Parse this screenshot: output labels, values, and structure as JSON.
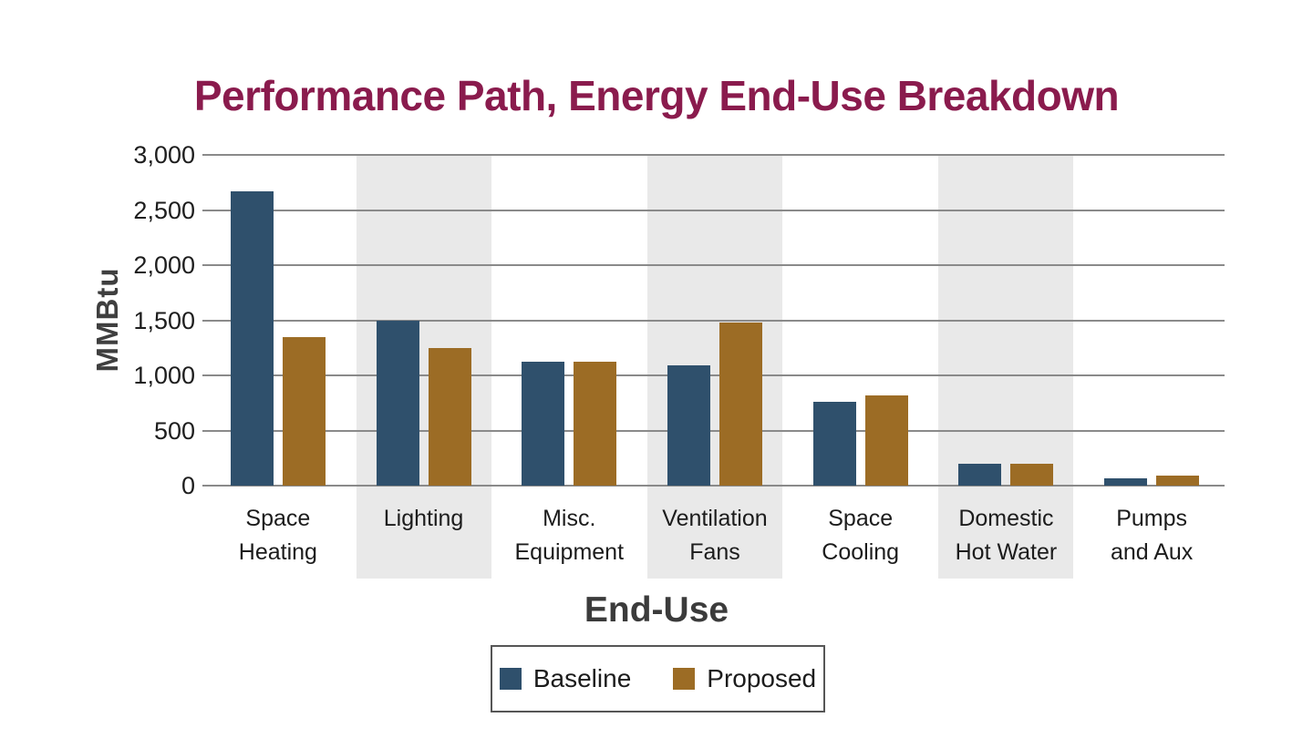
{
  "title": "Performance Path, Energy End-Use Breakdown",
  "chart_data": {
    "type": "bar",
    "title": "Performance Path, Energy End-Use Breakdown",
    "xlabel": "End-Use",
    "ylabel": "MMBtu",
    "ylim": [
      0,
      3000
    ],
    "ytick_interval": 500,
    "ytick_labels": [
      "0",
      "500",
      "1,000",
      "1,500",
      "2,000",
      "2,500",
      "3,000"
    ],
    "grid": true,
    "legend_position": "bottom",
    "categories": [
      "Space Heating",
      "Lighting",
      "Misc. Equipment",
      "Ventilation Fans",
      "Space Cooling",
      "Domestic Hot Water",
      "Pumps and Aux"
    ],
    "category_label_lines": [
      [
        "Space",
        "Heating"
      ],
      [
        "Lighting"
      ],
      [
        "Misc.",
        "Equipment"
      ],
      [
        "Ventilation",
        "Fans"
      ],
      [
        "Space",
        "Cooling"
      ],
      [
        "Domestic",
        "Hot Water"
      ],
      [
        "Pumps",
        "and Aux"
      ]
    ],
    "shaded_category_indices": [
      1,
      3,
      5
    ],
    "series": [
      {
        "name": "Baseline",
        "color": "#2F506C",
        "values": [
          2670,
          1500,
          1120,
          1090,
          760,
          195,
          70
        ]
      },
      {
        "name": "Proposed",
        "color": "#9C6C25",
        "values": [
          1350,
          1250,
          1120,
          1480,
          820,
          195,
          95
        ]
      }
    ]
  },
  "colors": {
    "title": "#8A1B4D",
    "axis_titles": "#3F3F3F",
    "tick_text": "#1E1E1E",
    "gridline": "#8A8A8A",
    "shaded_band": "#E9E9E9",
    "legend_border": "#565656",
    "baseline_series": "#2F506C",
    "proposed_series": "#9C6C25"
  }
}
